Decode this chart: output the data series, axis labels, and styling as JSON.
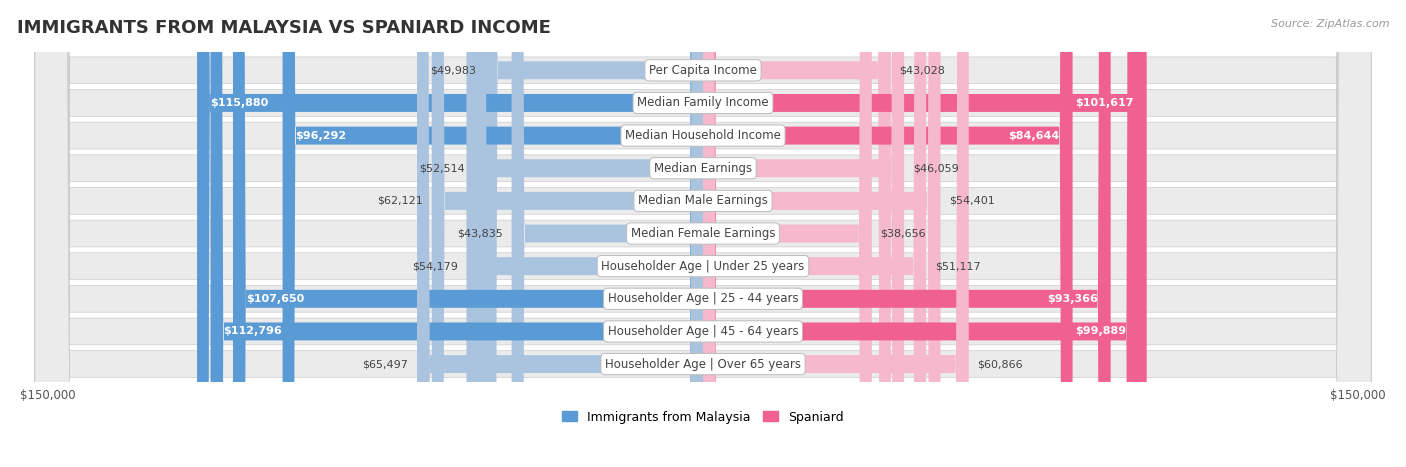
{
  "title": "IMMIGRANTS FROM MALAYSIA VS SPANIARD INCOME",
  "source": "Source: ZipAtlas.com",
  "categories": [
    "Per Capita Income",
    "Median Family Income",
    "Median Household Income",
    "Median Earnings",
    "Median Male Earnings",
    "Median Female Earnings",
    "Householder Age | Under 25 years",
    "Householder Age | 25 - 44 years",
    "Householder Age | 45 - 64 years",
    "Householder Age | Over 65 years"
  ],
  "malaysia_values": [
    49983,
    115880,
    96292,
    52514,
    62121,
    43835,
    54179,
    107650,
    112796,
    65497
  ],
  "spaniard_values": [
    43028,
    101617,
    84644,
    46059,
    54401,
    38656,
    51117,
    93366,
    99889,
    60866
  ],
  "malaysia_color_light": "#aac4e0",
  "malaysia_color_dark": "#5b9bd5",
  "spaniard_color_light": "#f5b8cc",
  "spaniard_color_dark": "#f06090",
  "malaysia_label": "Immigrants from Malaysia",
  "spaniard_label": "Spaniard",
  "max_value": 150000,
  "bg_color": "#ffffff",
  "row_bg_color": "#ebebeb",
  "title_fontsize": 13,
  "label_fontsize": 8.5,
  "value_fontsize": 8,
  "legend_fontsize": 9,
  "axis_fontsize": 8.5,
  "inside_threshold": 75000
}
